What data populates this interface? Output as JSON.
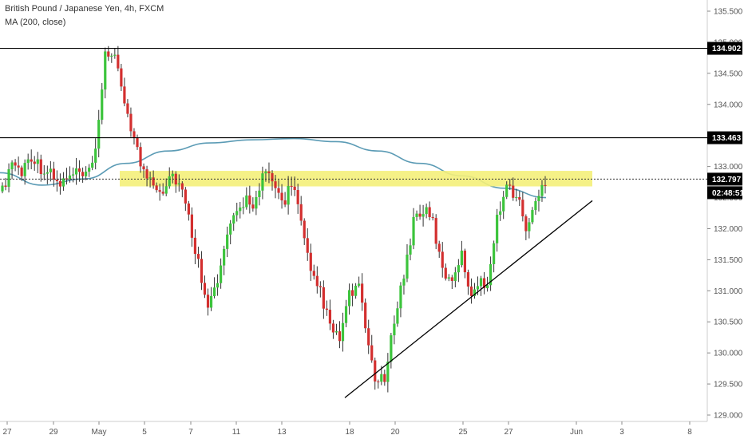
{
  "legend": {
    "title": "British Pound / Japanese Yen, 4h, FXCM",
    "indicator": "MA (200, close)"
  },
  "colors": {
    "up": "#26a69a",
    "up_bright": "#3cc43c",
    "down": "#d32f2f",
    "ma": "#5b9bb5",
    "zone": "#f4f07a",
    "line": "#000000"
  },
  "price_tags": {
    "level_high": "134.902",
    "level_mid": "133.463",
    "current_price": "132.797",
    "countdown": "02:48:51"
  },
  "chart_data": {
    "type": "line",
    "title": "British Pound / Japanese Yen, 4h, FXCM",
    "xlabel": "",
    "ylabel": "",
    "ylim": [
      128.95,
      135.75
    ],
    "y_ticks": [
      "135.500",
      "135.000",
      "134.500",
      "134.000",
      "133.500",
      "133.000",
      "132.500",
      "132.000",
      "131.500",
      "131.000",
      "130.500",
      "130.000",
      "129.500",
      "129.000"
    ],
    "x_ticks": [
      "27",
      "29",
      "May",
      "5",
      "7",
      "11",
      "13",
      "18",
      "20",
      "25",
      "27",
      "Jun",
      "3",
      "8"
    ],
    "series": [
      {
        "values": [
          132.6,
          133.1,
          132.9,
          133.2,
          133.0,
          132.9,
          132.7,
          132.8,
          132.9,
          132.8,
          133.2,
          134.9,
          134.7,
          134.1,
          133.5,
          132.9,
          132.8,
          132.6,
          132.9,
          132.7,
          132.1,
          131.4,
          130.8,
          131.1,
          131.9,
          132.2,
          132.5,
          132.4,
          132.9,
          132.7,
          132.4,
          132.8,
          132.0,
          131.2,
          131.0,
          130.4,
          130.2,
          130.9,
          131.1,
          130.2,
          129.5,
          129.6,
          130.7,
          131.3,
          132.2,
          132.3,
          132.1,
          131.3,
          131.2,
          131.6,
          131.0,
          131.1,
          131.2,
          132.3,
          132.7,
          132.5,
          132.0,
          132.4,
          132.8
        ]
      },
      {
        "name": "MA (200, close)",
        "values": [
          132.9,
          132.7,
          132.8,
          133.05,
          133.25,
          133.38,
          133.43,
          133.45,
          133.4,
          133.25,
          133.05,
          132.85,
          132.65,
          132.5
        ]
      }
    ],
    "horizontal_levels": [
      134.902,
      133.463,
      132.797
    ],
    "resistance_zone": [
      132.68,
      132.93
    ],
    "trendline": {
      "from": [
        129.28
      ],
      "to": [
        132.45
      ]
    }
  }
}
